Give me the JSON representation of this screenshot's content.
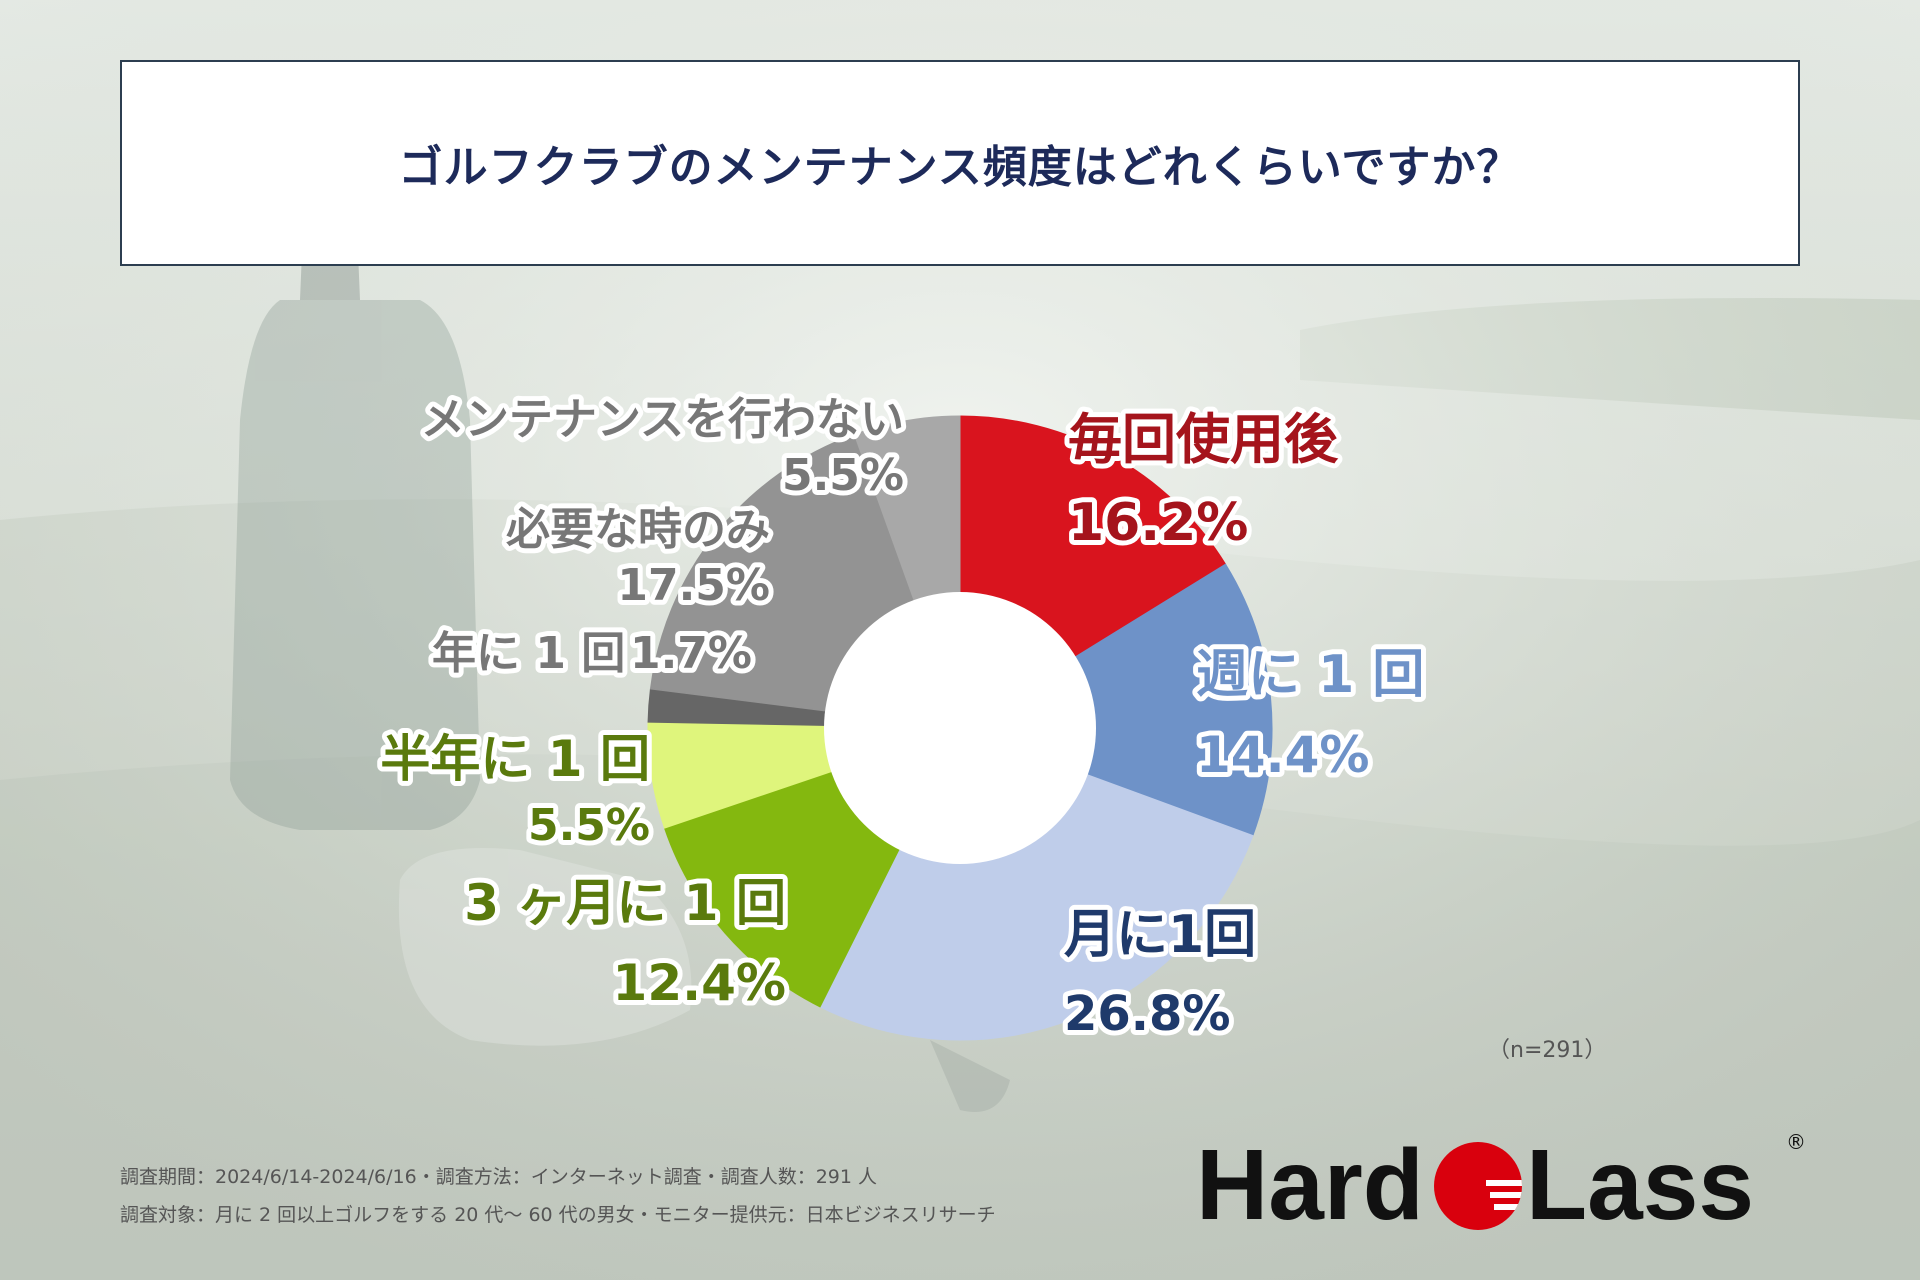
{
  "title": "ゴルフクラブのメンテナンス頻度はどれくらいですか？",
  "sample_note": "（n=291）",
  "footer": {
    "line1": "調査期間：2024/6/14-2024/6/16・調査方法：インターネット調査・調査人数：291 人",
    "line2": "調査対象：月に 2 回以上ゴルフをする 20 代〜 60 代の男女・モニター提供元：日本ビジネスリサーチ"
  },
  "logo": {
    "left": "Hard",
    "right": "Lass",
    "mark": "®",
    "brand_color": "#d9000d"
  },
  "chart_data": {
    "type": "pie",
    "variant": "donut",
    "title": "ゴルフクラブのメンテナンス頻度はどれくらいですか？",
    "unit": "%",
    "slices": [
      {
        "label": "毎回使用後",
        "value": 16.2,
        "value_text": "16.2%",
        "color": "#d9141e",
        "label_color": "#a5141c"
      },
      {
        "label": "週に 1 回",
        "value": 14.4,
        "value_text": "14.4%",
        "color": "#6e92c8",
        "label_color": "#6e92c8"
      },
      {
        "label": "月に1回",
        "value": 26.8,
        "value_text": "26.8%",
        "color": "#bfcdea",
        "label_color": "#1f3a6b"
      },
      {
        "label": "3 ヶ月に 1 回",
        "value": 12.4,
        "value_text": "12.4%",
        "color": "#84b80f",
        "label_color": "#5a7a0d"
      },
      {
        "label": "半年に 1 回",
        "value": 5.5,
        "value_text": "5.5%",
        "color": "#dff57c",
        "label_color": "#5a7a0d"
      },
      {
        "label": "年に 1 回",
        "value": 1.7,
        "value_text": "1.7%",
        "color": "#666666",
        "label_color": "#777777"
      },
      {
        "label": "必要な時のみ",
        "value": 17.5,
        "value_text": "17.5%",
        "color": "#939393",
        "label_color": "#777777"
      },
      {
        "label": "メンテナンスを行わない",
        "value": 5.5,
        "value_text": "5.5%",
        "color": "#a8a8a8",
        "label_color": "#777777"
      }
    ]
  }
}
